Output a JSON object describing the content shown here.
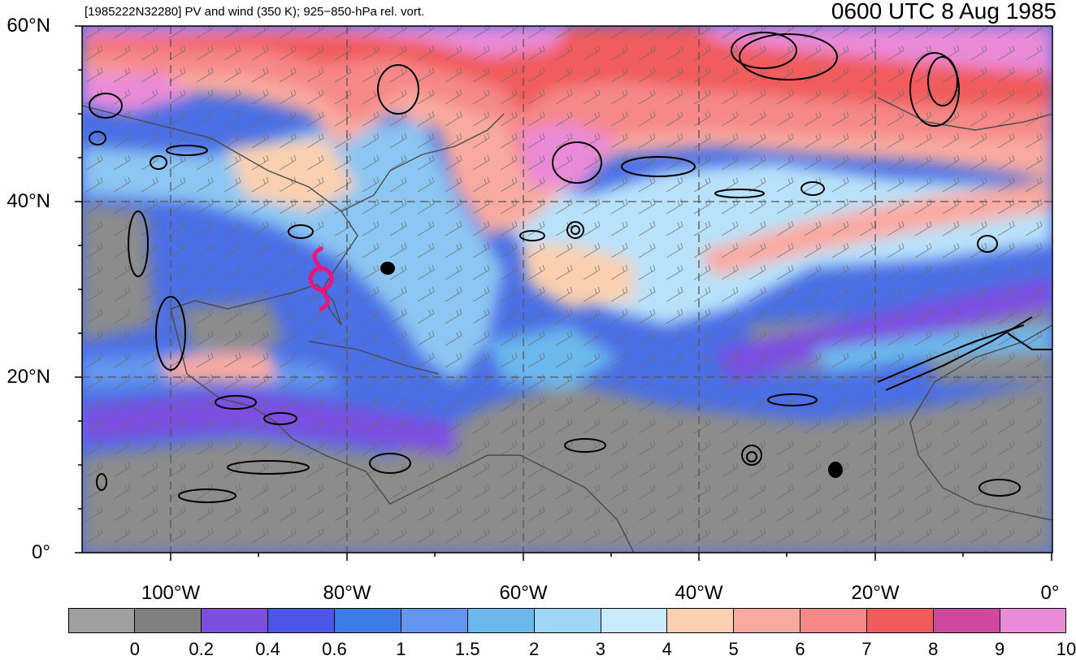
{
  "header": {
    "left_title": "[1985222N32280] PV and wind (350 K); 925−850-hPa rel. vort.",
    "right_title": "0600 UTC 8 Aug 1985"
  },
  "map": {
    "lat_labels": [
      "60°N",
      "40°N",
      "20°N",
      "0°"
    ],
    "lon_labels": [
      "100°W",
      "80°W",
      "60°W",
      "40°W",
      "20°W",
      "0°"
    ],
    "grid_line_color": "#555555",
    "storm_symbol_color": "#e8177d",
    "storm_symbol": "tropical-storm-icon",
    "contour_color": "#000000"
  },
  "colorbar": {
    "colors": [
      "#a0a0a0",
      "#808080",
      "#7b4fe0",
      "#4b55e8",
      "#3d7be8",
      "#6396ee",
      "#6ab8ec",
      "#9fd6f7",
      "#c9ecfc",
      "#fbd0b0",
      "#f9aaa0",
      "#f68888",
      "#f15b5b",
      "#d0489e",
      "#ea8ad8"
    ],
    "tick_labels": [
      "0",
      "0.2",
      "0.4",
      "0.6",
      "1",
      "1.5",
      "2",
      "3",
      "4",
      "5",
      "6",
      "7",
      "8",
      "9",
      "10"
    ]
  }
}
